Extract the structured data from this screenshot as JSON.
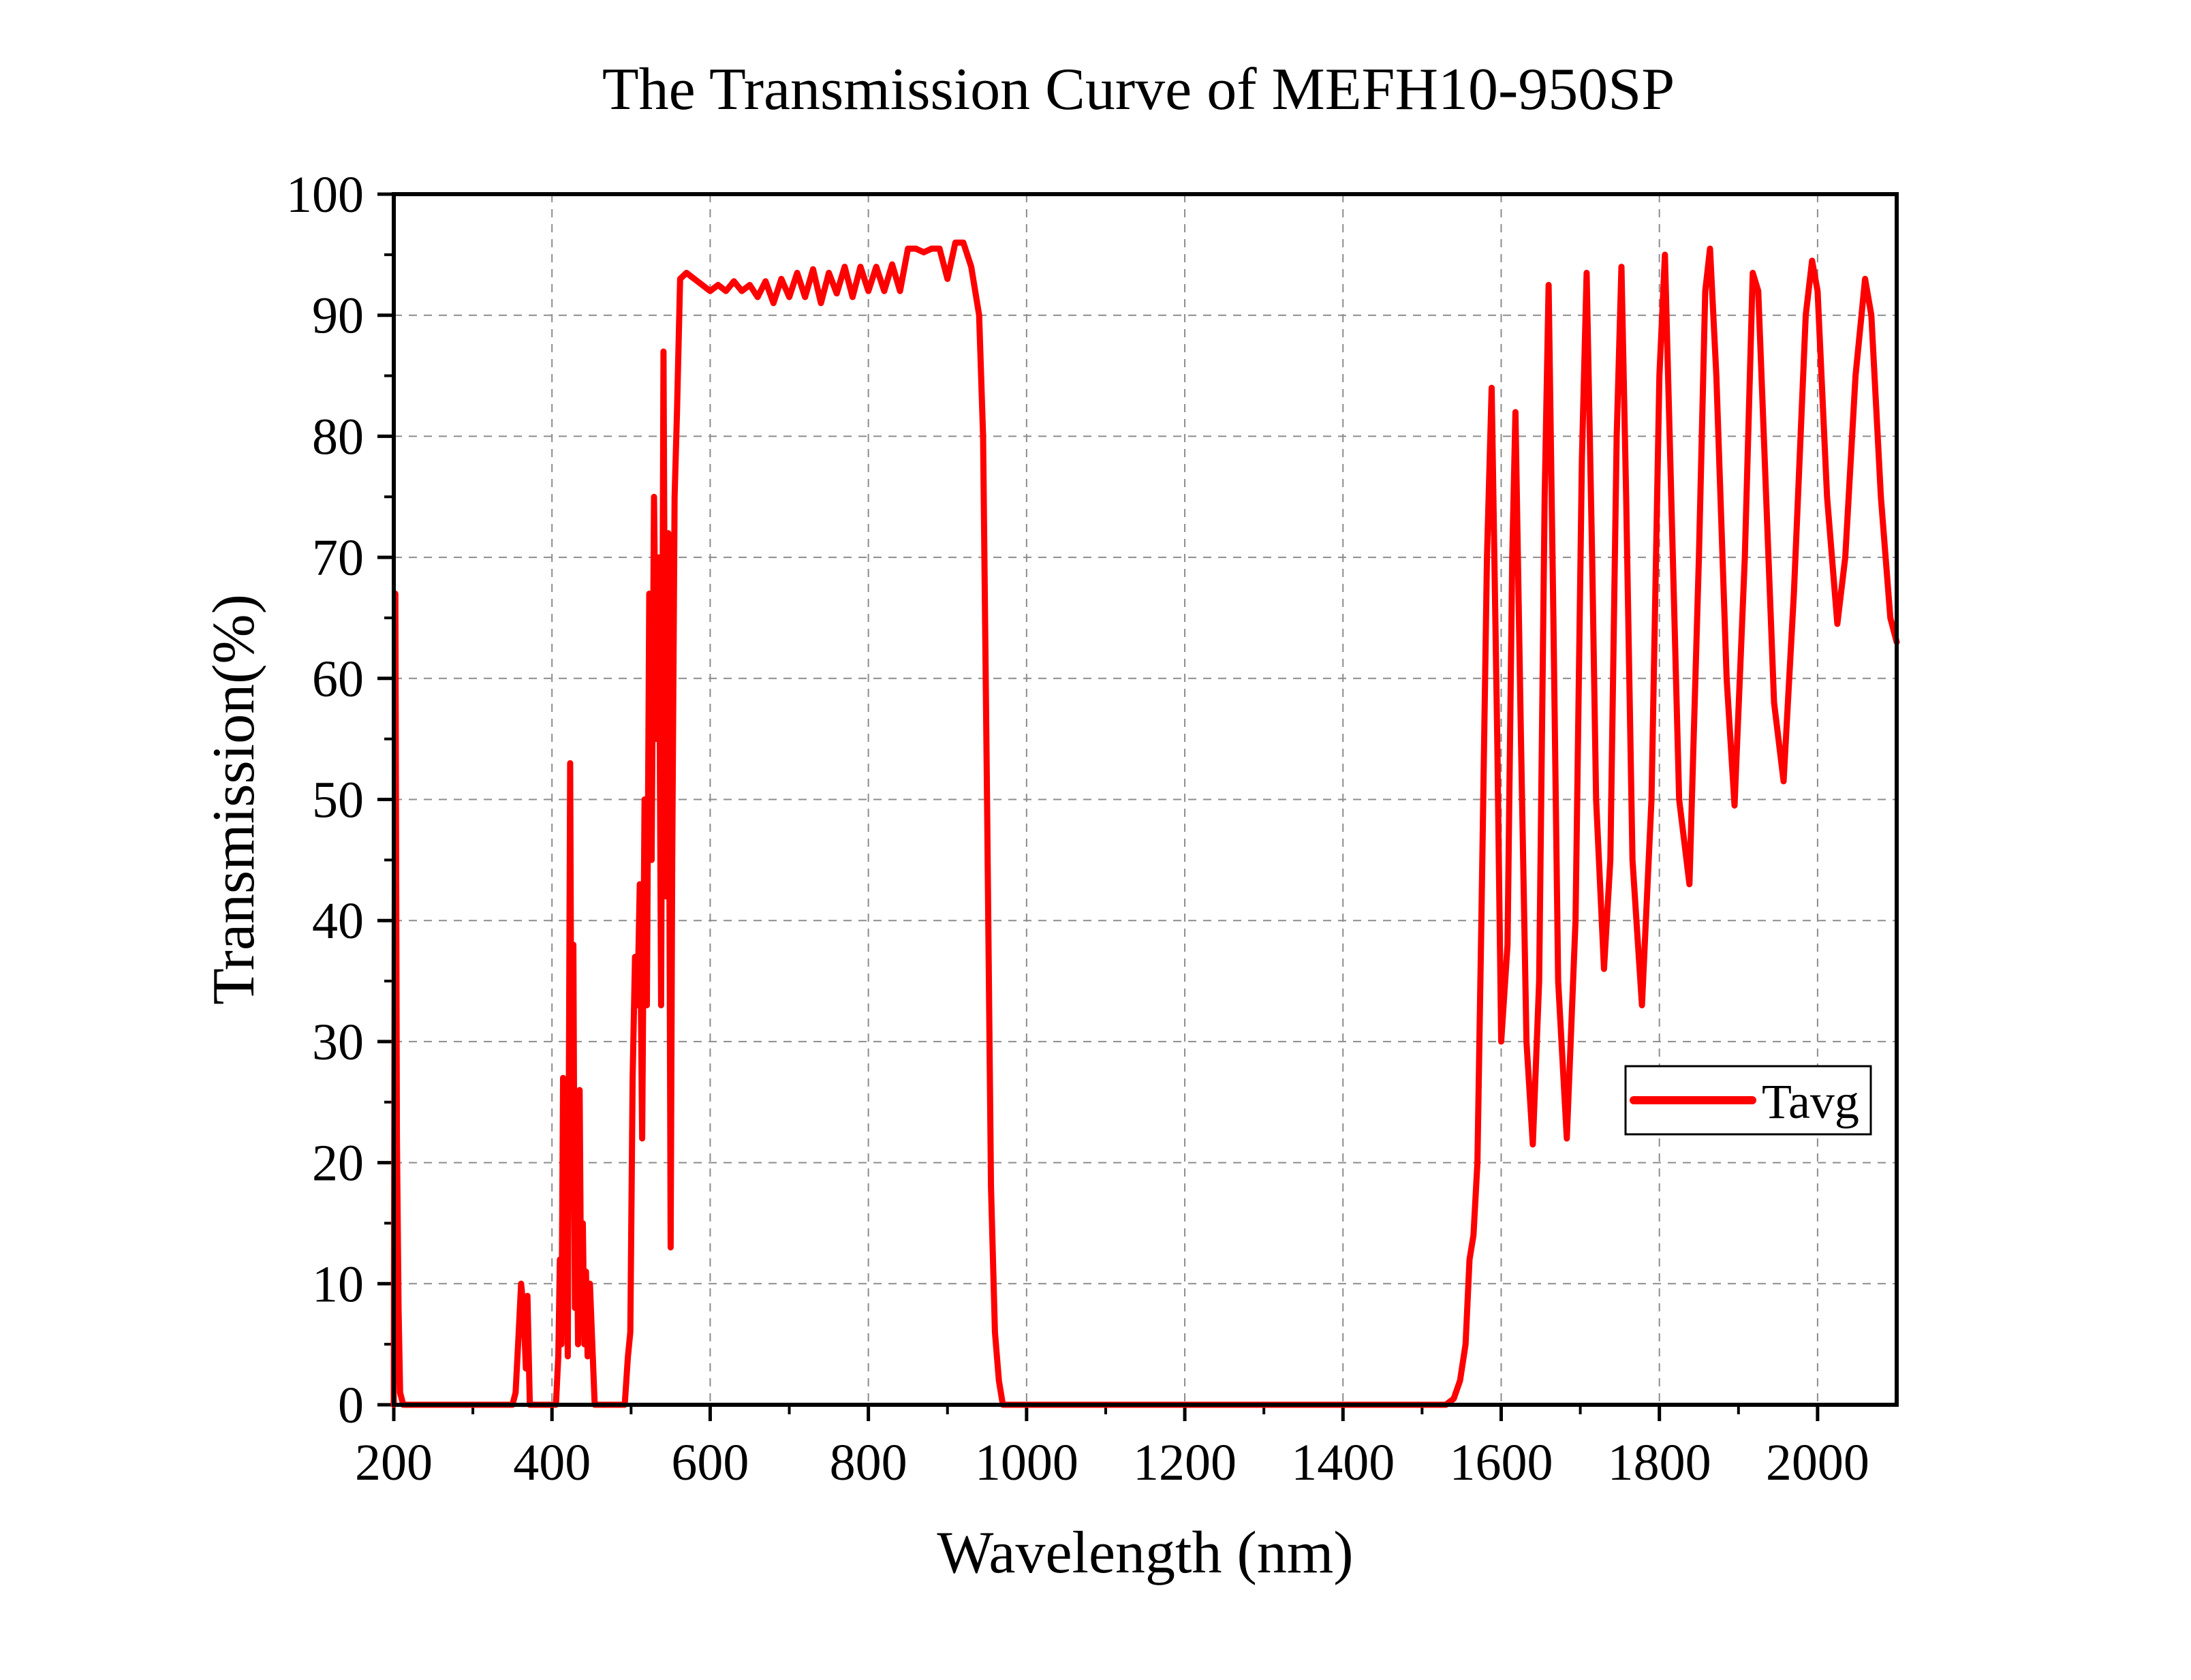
{
  "chart_data": {
    "type": "line",
    "title": "The Transmission Curve of MEFH10-950SP",
    "xlabel": "Wavelength (nm)",
    "ylabel": "Transmission(%)",
    "xlim": [
      200,
      2100
    ],
    "ylim": [
      0,
      100
    ],
    "x_ticks": [
      200,
      400,
      600,
      800,
      1000,
      1200,
      1400,
      1600,
      1800,
      2000
    ],
    "x_tick_labels": [
      "200",
      "400",
      "600",
      "800",
      "1000",
      "1200",
      "1400",
      "1600",
      "1800",
      "2000"
    ],
    "y_ticks": [
      0,
      10,
      20,
      30,
      40,
      50,
      60,
      70,
      80,
      90,
      100
    ],
    "y_tick_labels": [
      "0",
      "10",
      "20",
      "30",
      "40",
      "50",
      "60",
      "70",
      "80",
      "90",
      "100"
    ],
    "grid": true,
    "legend_position": "lower-right",
    "series": [
      {
        "name": "Tavg",
        "color": "#ff0000",
        "points": [
          [
            200,
            0
          ],
          [
            202,
            67
          ],
          [
            204,
            22
          ],
          [
            206,
            8
          ],
          [
            208,
            1
          ],
          [
            212,
            0
          ],
          [
            350,
            0
          ],
          [
            354,
            1
          ],
          [
            358,
            6
          ],
          [
            361,
            10
          ],
          [
            364,
            8
          ],
          [
            367,
            3
          ],
          [
            369,
            9
          ],
          [
            372,
            0
          ],
          [
            405,
            0
          ],
          [
            408,
            4
          ],
          [
            410,
            12
          ],
          [
            412,
            5
          ],
          [
            414,
            27
          ],
          [
            416,
            8
          ],
          [
            418,
            26
          ],
          [
            420,
            4
          ],
          [
            423,
            53
          ],
          [
            425,
            20
          ],
          [
            427,
            38
          ],
          [
            429,
            8
          ],
          [
            431,
            18
          ],
          [
            433,
            5
          ],
          [
            435,
            26
          ],
          [
            437,
            7
          ],
          [
            439,
            15
          ],
          [
            441,
            5
          ],
          [
            443,
            11
          ],
          [
            445,
            4
          ],
          [
            448,
            10
          ],
          [
            451,
            5
          ],
          [
            454,
            0
          ],
          [
            492,
            0
          ],
          [
            496,
            4
          ],
          [
            499,
            6
          ],
          [
            502,
            27
          ],
          [
            505,
            37
          ],
          [
            508,
            33
          ],
          [
            511,
            43
          ],
          [
            514,
            22
          ],
          [
            517,
            50
          ],
          [
            520,
            33
          ],
          [
            523,
            67
          ],
          [
            526,
            45
          ],
          [
            529,
            75
          ],
          [
            532,
            55
          ],
          [
            535,
            70
          ],
          [
            538,
            33
          ],
          [
            541,
            87
          ],
          [
            544,
            42
          ],
          [
            547,
            72
          ],
          [
            550,
            13
          ],
          [
            552,
            45
          ],
          [
            555,
            75
          ],
          [
            558,
            82
          ],
          [
            562,
            93
          ],
          [
            570,
            93.5
          ],
          [
            580,
            93
          ],
          [
            590,
            92.5
          ],
          [
            600,
            92
          ],
          [
            610,
            92.5
          ],
          [
            620,
            92
          ],
          [
            630,
            92.8
          ],
          [
            640,
            92
          ],
          [
            650,
            92.5
          ],
          [
            660,
            91.5
          ],
          [
            670,
            92.8
          ],
          [
            680,
            91
          ],
          [
            690,
            93
          ],
          [
            700,
            91.5
          ],
          [
            710,
            93.5
          ],
          [
            720,
            91.5
          ],
          [
            730,
            93.8
          ],
          [
            740,
            91
          ],
          [
            750,
            93.5
          ],
          [
            760,
            91.8
          ],
          [
            770,
            94
          ],
          [
            780,
            91.5
          ],
          [
            790,
            94
          ],
          [
            800,
            92
          ],
          [
            810,
            94
          ],
          [
            820,
            92
          ],
          [
            830,
            94.2
          ],
          [
            840,
            92
          ],
          [
            850,
            95.5
          ],
          [
            860,
            95.5
          ],
          [
            870,
            95.2
          ],
          [
            880,
            95.5
          ],
          [
            890,
            95.5
          ],
          [
            900,
            93
          ],
          [
            910,
            96
          ],
          [
            920,
            96
          ],
          [
            930,
            94
          ],
          [
            940,
            90
          ],
          [
            945,
            80
          ],
          [
            950,
            50
          ],
          [
            955,
            18
          ],
          [
            960,
            6
          ],
          [
            965,
            2
          ],
          [
            970,
            0
          ],
          [
            1530,
            0
          ],
          [
            1540,
            0.5
          ],
          [
            1548,
            2
          ],
          [
            1555,
            5
          ],
          [
            1560,
            12
          ],
          [
            1565,
            14
          ],
          [
            1570,
            20
          ],
          [
            1575,
            40
          ],
          [
            1582,
            70
          ],
          [
            1588,
            84
          ],
          [
            1595,
            55
          ],
          [
            1600,
            30
          ],
          [
            1608,
            38
          ],
          [
            1614,
            70
          ],
          [
            1618,
            82
          ],
          [
            1625,
            55
          ],
          [
            1632,
            30
          ],
          [
            1640,
            21.5
          ],
          [
            1648,
            35
          ],
          [
            1655,
            75
          ],
          [
            1660,
            92.5
          ],
          [
            1666,
            65
          ],
          [
            1672,
            35
          ],
          [
            1683,
            22
          ],
          [
            1694,
            40
          ],
          [
            1702,
            78
          ],
          [
            1708,
            93.5
          ],
          [
            1715,
            70
          ],
          [
            1720,
            50
          ],
          [
            1730,
            36
          ],
          [
            1738,
            45
          ],
          [
            1746,
            80
          ],
          [
            1752,
            94
          ],
          [
            1758,
            75
          ],
          [
            1766,
            45
          ],
          [
            1778,
            33
          ],
          [
            1790,
            50
          ],
          [
            1800,
            85
          ],
          [
            1807,
            95
          ],
          [
            1815,
            75
          ],
          [
            1825,
            50
          ],
          [
            1838,
            43
          ],
          [
            1850,
            70
          ],
          [
            1858,
            92
          ],
          [
            1864,
            95.5
          ],
          [
            1872,
            85
          ],
          [
            1885,
            60
          ],
          [
            1895,
            49.5
          ],
          [
            1908,
            70
          ],
          [
            1918,
            93.5
          ],
          [
            1925,
            92
          ],
          [
            1935,
            75
          ],
          [
            1945,
            58
          ],
          [
            1957,
            51.5
          ],
          [
            1970,
            67
          ],
          [
            1985,
            90
          ],
          [
            1993,
            94.5
          ],
          [
            2000,
            92
          ],
          [
            2012,
            75
          ],
          [
            2025,
            64.5
          ],
          [
            2035,
            70
          ],
          [
            2048,
            85
          ],
          [
            2060,
            93
          ],
          [
            2068,
            90
          ],
          [
            2080,
            75
          ],
          [
            2092,
            65
          ],
          [
            2100,
            63
          ]
        ]
      }
    ]
  }
}
